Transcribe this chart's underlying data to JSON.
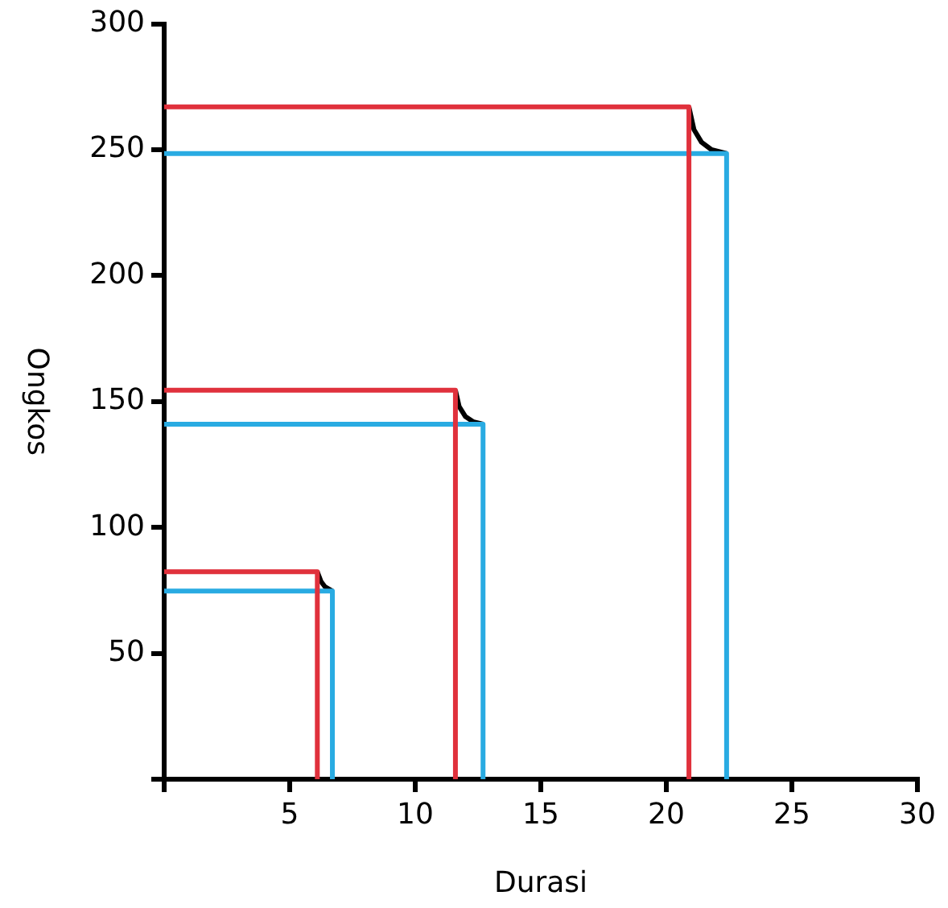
{
  "chart_data": {
    "type": "line",
    "xlabel": "Durasi",
    "ylabel": "Ongkos",
    "xlim": [
      0,
      30
    ],
    "ylim": [
      0,
      300
    ],
    "xticks": [
      {
        "value": 0,
        "label": null
      },
      5,
      10,
      15,
      20,
      25,
      30
    ],
    "yticks": [
      {
        "value": 0,
        "label": null
      },
      50,
      100,
      150,
      200,
      250,
      300
    ],
    "grid": false,
    "legend": false,
    "marker": "none",
    "line_style": "solid",
    "series": [
      {
        "color": "#e0313c",
        "x": [
          0,
          6.1,
          6.1
        ],
        "values": [
          82.4,
          82.4,
          0
        ]
      },
      {
        "color": "#29abe2",
        "x": [
          0,
          6.7,
          6.7
        ],
        "values": [
          74.7,
          74.7,
          0
        ]
      },
      {
        "color": "#000000",
        "x": [
          6.1,
          6.25,
          6.4,
          6.7
        ],
        "values": [
          82.4,
          78.5,
          76.5,
          74.7
        ]
      },
      {
        "color": "#e0313c",
        "x": [
          0,
          11.6,
          11.6
        ],
        "values": [
          154.5,
          154.5,
          0
        ]
      },
      {
        "color": "#29abe2",
        "x": [
          0,
          12.7,
          12.7
        ],
        "values": [
          141,
          141,
          0
        ]
      },
      {
        "color": "#000000",
        "x": [
          11.6,
          11.75,
          12.0,
          12.3,
          12.7
        ],
        "values": [
          154.5,
          148,
          144,
          142,
          141
        ]
      },
      {
        "color": "#e0313c",
        "x": [
          0,
          20.9,
          20.9
        ],
        "values": [
          267,
          267,
          0
        ]
      },
      {
        "color": "#29abe2",
        "x": [
          0,
          22.4,
          22.4
        ],
        "values": [
          248.5,
          248.5,
          0
        ]
      },
      {
        "color": "#000000",
        "x": [
          20.9,
          21.1,
          21.4,
          21.8,
          22.4
        ],
        "values": [
          267,
          258,
          253,
          250,
          248.5
        ]
      }
    ]
  }
}
